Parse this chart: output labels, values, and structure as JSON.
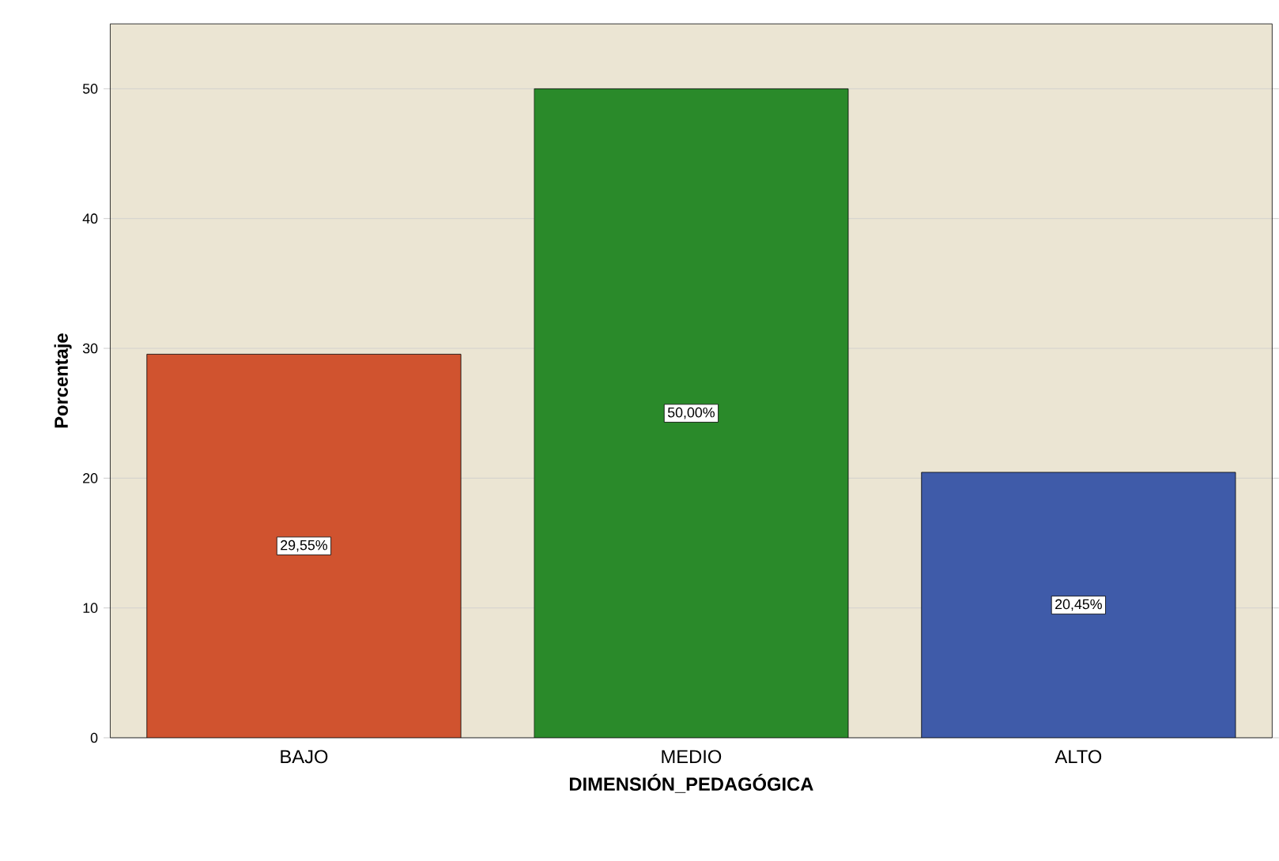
{
  "chart_data": {
    "type": "bar",
    "xlabel": "DIMENSIÓN_PEDAGÓGICA",
    "ylabel": "Porcentaje",
    "categories": [
      "BAJO",
      "MEDIO",
      "ALTO"
    ],
    "values": [
      29.55,
      50.0,
      20.45
    ],
    "colors": [
      "#d0532f",
      "#2a8a2a",
      "#3f5ba9"
    ],
    "value_labels": [
      "29,55%",
      "50,00%",
      "20,45%"
    ],
    "ylim": [
      0,
      55
    ],
    "yticks": [
      0,
      10,
      20,
      30,
      40,
      50
    ],
    "grid": "y"
  }
}
